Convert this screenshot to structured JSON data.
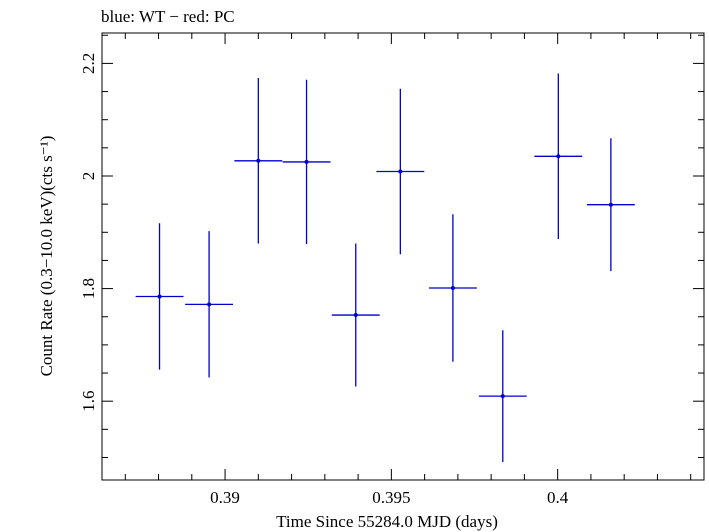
{
  "chart_data": {
    "type": "scatter",
    "title": "blue: WT − red: PC",
    "xlabel": "Time Since 55284.0 MJD (days)",
    "ylabel": "Count Rate (0.3−10.0 keV)(cts s⁻¹)",
    "xlim": [
      0.3863,
      0.4044
    ],
    "ylim": [
      1.46,
      2.254
    ],
    "x_ticks": [
      0.39,
      0.395,
      0.4
    ],
    "x_tick_labels": [
      "0.39",
      "0.395",
      "0.4"
    ],
    "y_ticks": [
      1.6,
      1.8,
      2.0,
      2.2
    ],
    "y_tick_labels": [
      "1.6",
      "1.8",
      "2",
      "2.2"
    ],
    "grid": false,
    "series": [
      {
        "color": "#0000cc",
        "points": [
          {
            "x": 0.38803,
            "xerr": 0.00072,
            "y": 1.786,
            "yerr": 0.13
          },
          {
            "x": 0.38952,
            "xerr": 0.00072,
            "y": 1.772,
            "yerr": 0.13
          },
          {
            "x": 0.391,
            "xerr": 0.00072,
            "y": 2.027,
            "yerr": 0.147
          },
          {
            "x": 0.39245,
            "xerr": 0.00072,
            "y": 2.025,
            "yerr": 0.146
          },
          {
            "x": 0.39393,
            "xerr": 0.00072,
            "y": 1.753,
            "yerr": 0.127
          },
          {
            "x": 0.39527,
            "xerr": 0.00072,
            "y": 2.008,
            "yerr": 0.147
          },
          {
            "x": 0.39685,
            "xerr": 0.00072,
            "y": 1.801,
            "yerr": 0.131
          },
          {
            "x": 0.39835,
            "xerr": 0.00072,
            "y": 1.609,
            "yerr": 0.117
          },
          {
            "x": 0.40002,
            "xerr": 0.00072,
            "y": 2.035,
            "yerr": 0.147
          },
          {
            "x": 0.4016,
            "xerr": 0.00072,
            "y": 1.949,
            "yerr": 0.118
          }
        ]
      }
    ]
  }
}
